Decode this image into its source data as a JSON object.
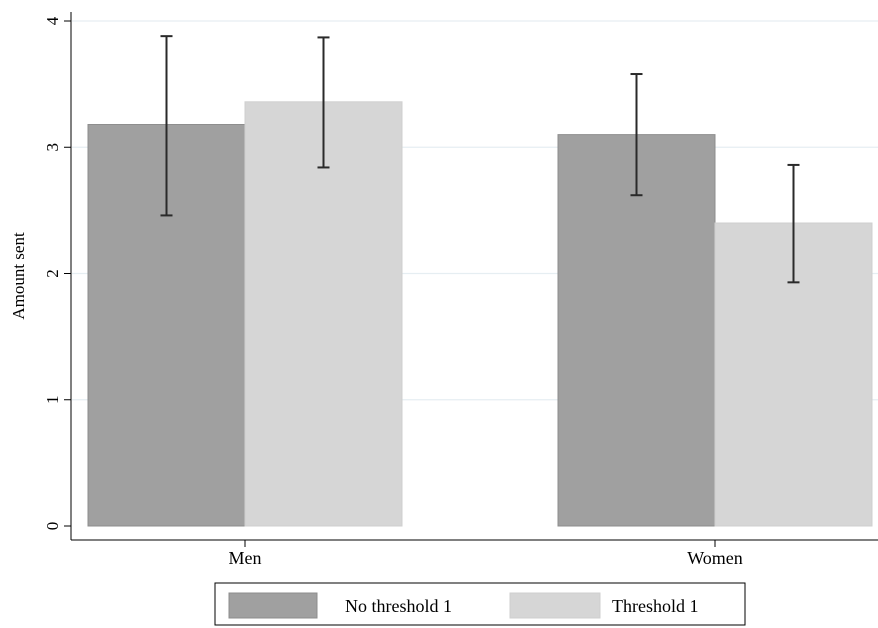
{
  "chart_data": {
    "type": "bar",
    "categories": [
      "Men",
      "Women"
    ],
    "series": [
      {
        "name": "No threshold 1",
        "values": [
          3.18,
          3.1
        ],
        "ci_low": [
          2.46,
          2.62
        ],
        "ci_high": [
          3.88,
          3.58
        ],
        "color": "#a0a0a0"
      },
      {
        "name": "Threshold 1",
        "values": [
          3.36,
          2.4
        ],
        "ci_low": [
          2.84,
          1.93
        ],
        "ci_high": [
          3.87,
          2.86
        ],
        "color": "#d6d6d6"
      }
    ],
    "ylabel": "Amount sent",
    "xlabel": "",
    "ylim": [
      0,
      4
    ],
    "yticks": [
      "0",
      "1",
      "2",
      "3",
      "4"
    ],
    "grid": true,
    "legend_position": "bottom-center"
  }
}
